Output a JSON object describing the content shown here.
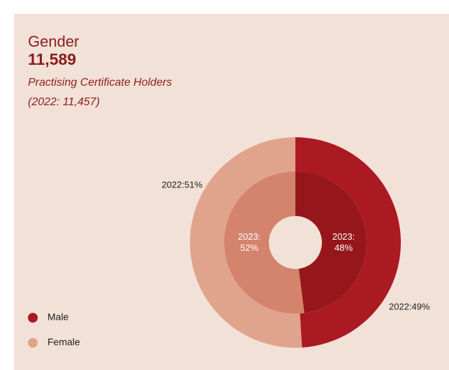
{
  "chart_data": {
    "type": "pie",
    "title": "Gender",
    "total": "11,589",
    "subtitle": "Practising Certificate Holders",
    "subtitle_note": "(2022: 11,457)",
    "categories": [
      "Male",
      "Female"
    ],
    "series": [
      {
        "name": "2022",
        "colors": [
          "#ab1a22",
          "#e0a48c"
        ],
        "values": [
          49,
          51
        ],
        "value_labels": [
          "2022:49%",
          "2022:51%"
        ]
      },
      {
        "name": "2023",
        "colors": [
          "#96171b",
          "#d4836d"
        ],
        "values": [
          48,
          52
        ],
        "value_labels": [
          "2023: 48%",
          "2023: 52%"
        ]
      }
    ],
    "legend_colors": [
      "#ab1a22",
      "#e0a48c"
    ],
    "legend": "bottom-left"
  }
}
